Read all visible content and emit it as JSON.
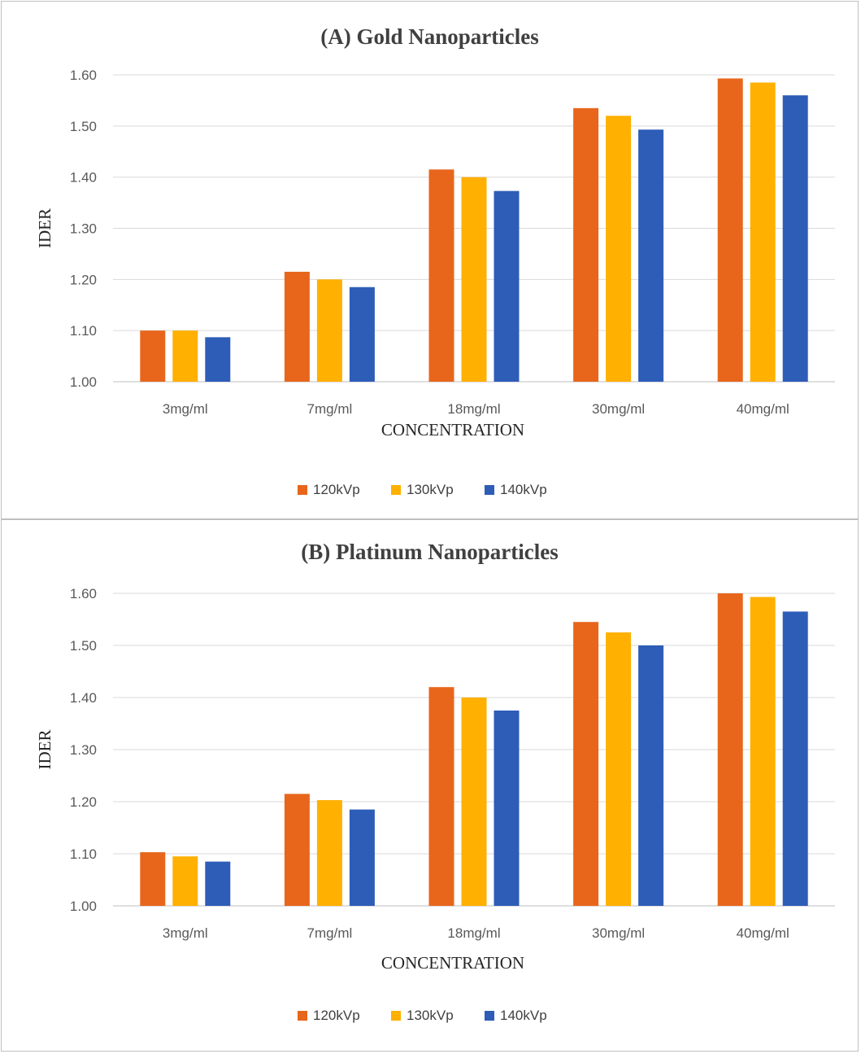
{
  "chart_data": [
    {
      "type": "bar",
      "title": "(A) Gold Nanoparticles",
      "xlabel": "CONCENTRATION",
      "ylabel": "IDER",
      "ylim": [
        1.0,
        1.6
      ],
      "yticks": [
        "1.00",
        "1.10",
        "1.20",
        "1.30",
        "1.40",
        "1.50",
        "1.60"
      ],
      "grid": true,
      "legend_position": "bottom",
      "categories": [
        "3mg/ml",
        "7mg/ml",
        "18mg/ml",
        "30mg/ml",
        "40mg/ml"
      ],
      "series": [
        {
          "name": "120kVp",
          "color": "#E8661C",
          "values": [
            1.1,
            1.215,
            1.415,
            1.535,
            1.593
          ]
        },
        {
          "name": "130kVp",
          "color": "#FFB000",
          "values": [
            1.1,
            1.2,
            1.4,
            1.52,
            1.585
          ]
        },
        {
          "name": "140kVp",
          "color": "#2E5DB8",
          "values": [
            1.087,
            1.185,
            1.373,
            1.493,
            1.56
          ]
        }
      ]
    },
    {
      "type": "bar",
      "title": "(B) Platinum Nanoparticles",
      "xlabel": "CONCENTRATION",
      "ylabel": "IDER",
      "ylim": [
        1.0,
        1.6
      ],
      "yticks": [
        "1.00",
        "1.10",
        "1.20",
        "1.30",
        "1.40",
        "1.50",
        "1.60"
      ],
      "grid": true,
      "legend_position": "bottom",
      "categories": [
        "3mg/ml",
        "7mg/ml",
        "18mg/ml",
        "30mg/ml",
        "40mg/ml"
      ],
      "series": [
        {
          "name": "120kVp",
          "color": "#E8661C",
          "values": [
            1.103,
            1.215,
            1.42,
            1.545,
            1.6
          ]
        },
        {
          "name": "130kVp",
          "color": "#FFB000",
          "values": [
            1.095,
            1.203,
            1.4,
            1.525,
            1.593
          ]
        },
        {
          "name": "140kVp",
          "color": "#2E5DB8",
          "values": [
            1.085,
            1.185,
            1.375,
            1.5,
            1.565
          ]
        }
      ]
    }
  ]
}
